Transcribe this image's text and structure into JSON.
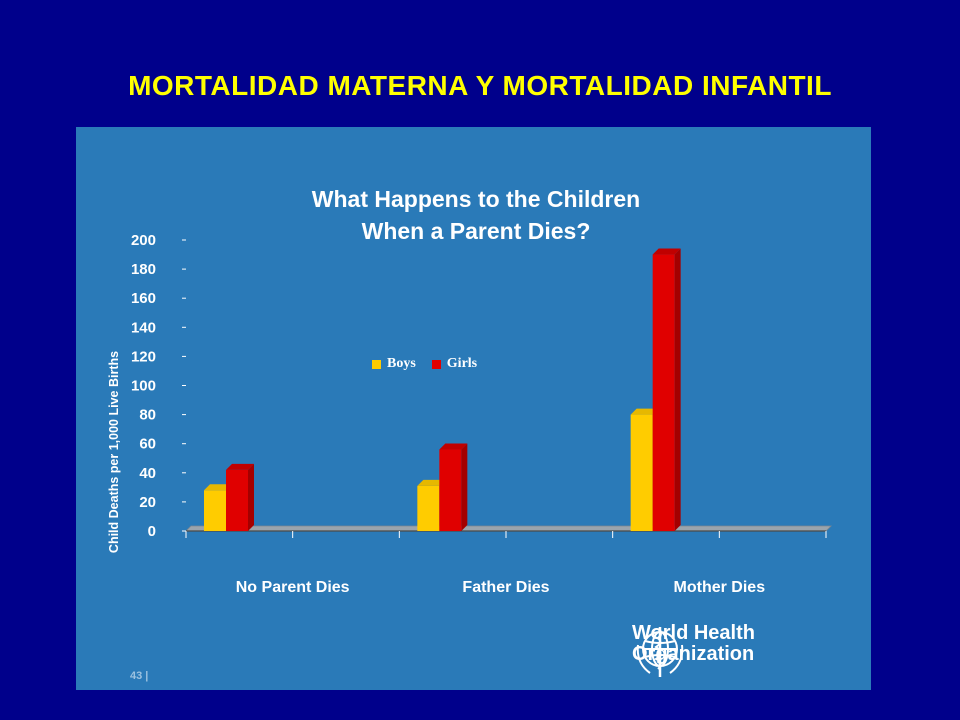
{
  "slide": {
    "title": "MORTALIDAD MATERNA Y MORTALIDAD INFANTIL",
    "page_number": "43 |"
  },
  "logo": {
    "icon": "who-emblem-icon",
    "line1": "World Health",
    "line2": "Organization"
  },
  "colors": {
    "background": "#00008b",
    "panel": "#2a7ab8",
    "title": "#ffff00",
    "boys": "#ffcc00",
    "girls": "#e00000"
  },
  "chart_data": {
    "type": "bar",
    "title_line1": "What Happens to the Children",
    "title_line2": "When a Parent Dies?",
    "xlabel": "",
    "ylabel": "Child Deaths per 1,000 Live Births",
    "ylim": [
      0,
      200
    ],
    "yticks": [
      0,
      20,
      40,
      60,
      80,
      100,
      120,
      140,
      160,
      180,
      200
    ],
    "categories": [
      "No Parent Dies",
      "Father Dies",
      "Mother Dies"
    ],
    "series": [
      {
        "name": "Boys",
        "values": [
          28,
          31,
          80
        ]
      },
      {
        "name": "Girls",
        "values": [
          42,
          56,
          190
        ]
      }
    ],
    "legend_position": "center",
    "grid": false
  }
}
